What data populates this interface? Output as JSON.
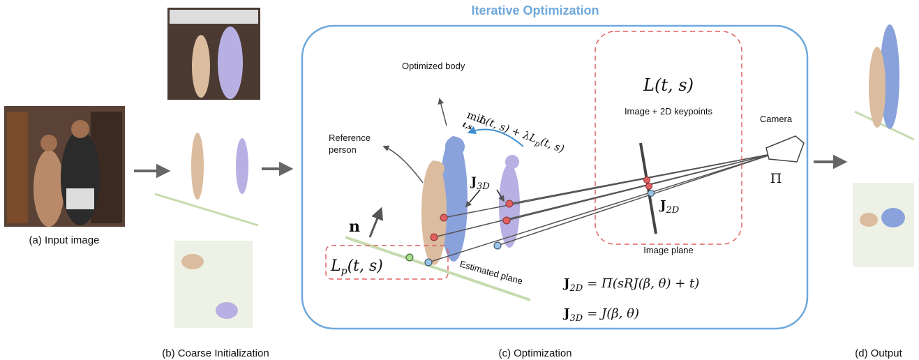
{
  "title": "Iterative Optimization",
  "captions": {
    "a": "(a) Input image",
    "b": "(b) Coarse Initialization",
    "c": "(c) Optimization",
    "d": "(d) Output"
  },
  "labels": {
    "optimized_body": "Optimized body",
    "reference_person": [
      "Reference",
      "person"
    ],
    "image_keypoints": "Image + 2D keypoints",
    "camera": "Camera",
    "image_plane": "Image plane",
    "estimated_plane": "Estimated plane"
  },
  "math": {
    "loss_2d": "L(t, s)",
    "projection": "Π",
    "normal": "n",
    "j3d": {
      "main": "J",
      "sub": "3D"
    },
    "j2d": {
      "main": "J",
      "sub": "2D"
    },
    "plane_loss": {
      "main": "L",
      "sub": "p",
      "rest": "(t, s)"
    },
    "objective": {
      "op": "min",
      "under": "t,s",
      "expr": "L(t, s) + λL",
      "sub": "p",
      "rest": "(t, s)"
    },
    "eq1": {
      "lhs": "J",
      "lhs_sub": "2D",
      "rhs": "= Π(sRJ(β, θ) + t)"
    },
    "eq2": {
      "lhs": "J",
      "lhs_sub": "3D",
      "rhs": "= J(β, θ)"
    }
  }
}
